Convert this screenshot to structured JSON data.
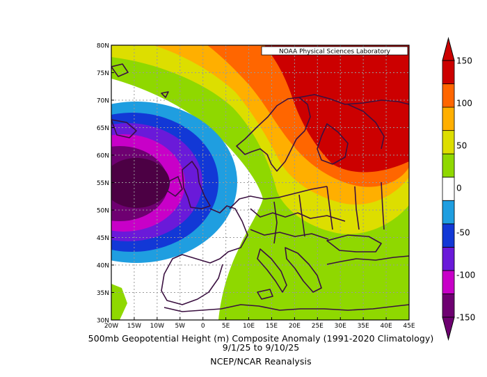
{
  "map": {
    "credit": "NOAA Physical Sciences Laboratory",
    "lat_labels": [
      "30N",
      "35N",
      "40N",
      "45N",
      "50N",
      "55N",
      "60N",
      "65N",
      "70N",
      "75N",
      "80N"
    ],
    "lon_labels": [
      "20W",
      "15W",
      "10W",
      "5W",
      "0",
      "5E",
      "10E",
      "15E",
      "20E",
      "25E",
      "30E",
      "35E",
      "40E",
      "45E"
    ],
    "extent": {
      "lon": [
        -20,
        45
      ],
      "lat": [
        30,
        80
      ]
    }
  },
  "colorbar": {
    "ticks": [
      "150",
      "100",
      "50",
      "0",
      "-50",
      "-100",
      "-150"
    ],
    "colors": [
      "#6e0071",
      "#c800c8",
      "#6a1ad9",
      "#1238d6",
      "#1f9ee0",
      "#ffffff",
      "#8fd800",
      "#ddde00",
      "#ffaf00",
      "#ff6600",
      "#cc0000"
    ]
  },
  "caption": {
    "line1": "500mb Geopotential Height (m) Composite Anomaly (1991-2020 Climatology)",
    "line2": "9/1/25  to 9/10/25",
    "line3": "NCEP/NCAR Reanalysis"
  },
  "anomaly_field": {
    "variable": "500mb Geopotential Height composite anomaly",
    "units": "m",
    "low_center": {
      "lon": -16,
      "lat": 55,
      "value_min": -150
    },
    "high_center": {
      "lon": 37,
      "lat": 67,
      "value_max": 150
    }
  }
}
